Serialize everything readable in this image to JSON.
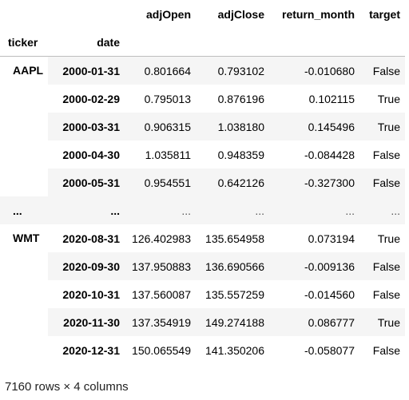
{
  "table": {
    "columns": [
      "adjOpen",
      "adjClose",
      "return_month",
      "target"
    ],
    "index_names": [
      "ticker",
      "date"
    ],
    "groups": [
      {
        "ticker": "AAPL",
        "rows": [
          {
            "date": "2000-01-31",
            "adjOpen": "0.801664",
            "adjClose": "0.793102",
            "return_month": "-0.010680",
            "target": "False"
          },
          {
            "date": "2000-02-29",
            "adjOpen": "0.795013",
            "adjClose": "0.876196",
            "return_month": "0.102115",
            "target": "True"
          },
          {
            "date": "2000-03-31",
            "adjOpen": "0.906315",
            "adjClose": "1.038180",
            "return_month": "0.145496",
            "target": "True"
          },
          {
            "date": "2000-04-30",
            "adjOpen": "1.035811",
            "adjClose": "0.948359",
            "return_month": "-0.084428",
            "target": "False"
          },
          {
            "date": "2000-05-31",
            "adjOpen": "0.954551",
            "adjClose": "0.642126",
            "return_month": "-0.327300",
            "target": "False"
          }
        ]
      }
    ],
    "ellipsis": {
      "ticker": "...",
      "date": "...",
      "adjOpen": "...",
      "adjClose": "...",
      "return_month": "...",
      "target": "..."
    },
    "groups_after": [
      {
        "ticker": "WMT",
        "rows": [
          {
            "date": "2020-08-31",
            "adjOpen": "126.402983",
            "adjClose": "135.654958",
            "return_month": "0.073194",
            "target": "True"
          },
          {
            "date": "2020-09-30",
            "adjOpen": "137.950883",
            "adjClose": "136.690566",
            "return_month": "-0.009136",
            "target": "False"
          },
          {
            "date": "2020-10-31",
            "adjOpen": "137.560087",
            "adjClose": "135.557259",
            "return_month": "-0.014560",
            "target": "False"
          },
          {
            "date": "2020-11-30",
            "adjOpen": "137.354919",
            "adjClose": "149.274188",
            "return_month": "0.086777",
            "target": "True"
          },
          {
            "date": "2020-12-31",
            "adjOpen": "150.065549",
            "adjClose": "141.350206",
            "return_month": "-0.058077",
            "target": "False"
          }
        ]
      }
    ]
  },
  "footer": {
    "shape_text": "7160 rows × 4 columns"
  }
}
